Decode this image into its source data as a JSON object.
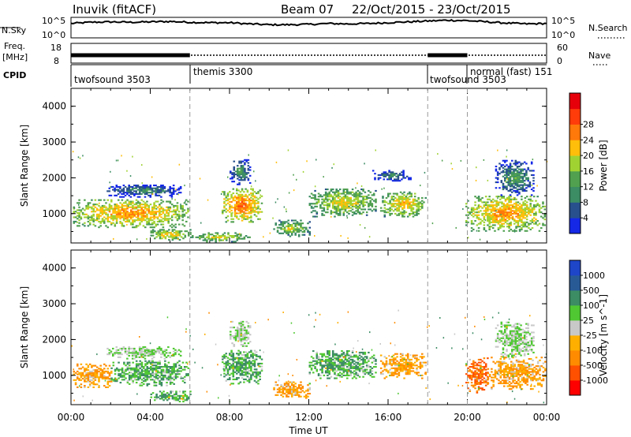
{
  "header": {
    "station": "Inuvik (fitACF)",
    "beam": "Beam 07",
    "date_range": "22/Oct/2015 - 23/Oct/2015"
  },
  "colors": {
    "power_scale": [
      "#1428e6",
      "#28508c",
      "#3c8c64",
      "#50a050",
      "#a0d232",
      "#ffbe0a",
      "#ff780a",
      "#ff3c0a",
      "#e6000a"
    ],
    "velocity_scale": [
      "#ff0000",
      "#ff5000",
      "#ff8c00",
      "#ffaf00",
      "#c8c8c8",
      "#50c832",
      "#3c8c64",
      "#285a96",
      "#1e46c8"
    ]
  },
  "chart_data": [
    {
      "type": "line",
      "panel": "noise",
      "ylabel": "N.Sky",
      "right_label": "N.Search",
      "yticks": [
        "10^5",
        "10^0"
      ],
      "right_yticks": [
        "10^5",
        "10^0"
      ],
      "x": [
        0,
        1,
        2,
        3,
        4,
        5,
        6,
        7,
        8,
        9,
        10,
        11,
        12,
        13,
        14,
        15,
        16,
        17,
        18,
        19,
        20,
        21,
        22,
        23,
        24
      ],
      "values": [
        3.5,
        3.8,
        3.9,
        3.8,
        3.9,
        4.0,
        3.8,
        3.7,
        3.7,
        3.4,
        3.2,
        3.2,
        3.3,
        3.5,
        3.4,
        3.5,
        3.7,
        3.9,
        4.1,
        4.3,
        4.2,
        3.9,
        3.6,
        3.4,
        3.5
      ]
    },
    {
      "type": "line",
      "panel": "frequency-nave",
      "ylabel": "Freq.",
      "ylabel_unit": "[MHz]",
      "right_label": "Nave",
      "yticks": [
        "18",
        "8"
      ],
      "right_yticks": [
        "60",
        "0"
      ],
      "twofsound_intervals": [
        [
          0,
          6
        ],
        [
          18,
          20
        ]
      ],
      "x": [
        0,
        6,
        18,
        20,
        24
      ],
      "values": [
        12,
        12,
        12,
        12,
        12
      ]
    },
    {
      "type": "table",
      "panel": "cpid",
      "ylabel": "CPID",
      "segments": [
        {
          "label": "twofsound 3503",
          "start": 0,
          "end": 6
        },
        {
          "label": "themis 3300",
          "start": 6,
          "end": 18
        },
        {
          "label": "twofsound 3503",
          "start": 18,
          "end": 20
        },
        {
          "label": "normal (fast) 151",
          "start": 20,
          "end": 24
        }
      ]
    },
    {
      "type": "heatmap",
      "panel": "power",
      "ylabel": "Slant Range [km]",
      "colorbar_label": "Power [dB]",
      "colorbar_ticks": [
        4,
        8,
        12,
        16,
        20,
        24,
        28
      ],
      "ylim": [
        180,
        4500
      ],
      "yticks": [
        1000,
        2000,
        3000,
        4000
      ],
      "regions": [
        {
          "t0": 0.1,
          "t1": 5.9,
          "r0": 600,
          "r1": 1400,
          "v": 26
        },
        {
          "t0": 1.8,
          "t1": 5.5,
          "r0": 1450,
          "r1": 1800,
          "v": 12
        },
        {
          "t0": 4.0,
          "t1": 6.0,
          "r0": 250,
          "r1": 550,
          "v": 24
        },
        {
          "t0": 7.6,
          "t1": 9.6,
          "r0": 750,
          "r1": 1700,
          "v": 28
        },
        {
          "t0": 8.0,
          "t1": 9.0,
          "r0": 1800,
          "r1": 2500,
          "v": 14
        },
        {
          "t0": 6.0,
          "t1": 9.0,
          "r0": 200,
          "r1": 450,
          "v": 22
        },
        {
          "t0": 10.2,
          "t1": 12.0,
          "r0": 350,
          "r1": 800,
          "v": 20
        },
        {
          "t0": 12.0,
          "t1": 15.4,
          "r0": 900,
          "r1": 1700,
          "v": 22
        },
        {
          "t0": 15.6,
          "t1": 17.9,
          "r0": 900,
          "r1": 1600,
          "v": 24
        },
        {
          "t0": 15.2,
          "t1": 17.2,
          "r0": 1900,
          "r1": 2200,
          "v": 12
        },
        {
          "t0": 19.9,
          "t1": 23.9,
          "r0": 500,
          "r1": 1500,
          "v": 26
        },
        {
          "t0": 21.4,
          "t1": 23.3,
          "r0": 1500,
          "r1": 2500,
          "v": 14
        }
      ]
    },
    {
      "type": "heatmap",
      "panel": "velocity",
      "ylabel": "Slant Range [km]",
      "xlabel": "Time UT",
      "colorbar_label": "Velocity [m s^-1]",
      "colorbar_ticks": [
        1000,
        500,
        100,
        25,
        -25,
        -100,
        -500,
        -1000
      ],
      "ylim": [
        180,
        4500
      ],
      "yticks": [
        1000,
        2000,
        3000,
        4000
      ],
      "xlim": [
        0,
        24
      ],
      "xticks": [
        "00:00",
        "04:00",
        "08:00",
        "12:00",
        "16:00",
        "20:00",
        "00:00"
      ],
      "regions": [
        {
          "t0": 0.1,
          "t1": 2.0,
          "r0": 650,
          "r1": 1300,
          "v": -100
        },
        {
          "t0": 2.0,
          "t1": 5.9,
          "r0": 700,
          "r1": 1400,
          "v": 100
        },
        {
          "t0": 1.8,
          "t1": 5.5,
          "r0": 1450,
          "r1": 1800,
          "v": 25
        },
        {
          "t0": 4.0,
          "t1": 6.0,
          "r0": 250,
          "r1": 550,
          "v": 100
        },
        {
          "t0": 7.6,
          "t1": 9.6,
          "r0": 750,
          "r1": 1700,
          "v": 100
        },
        {
          "t0": 8.0,
          "t1": 9.0,
          "r0": 1800,
          "r1": 2500,
          "v": 25
        },
        {
          "t0": 10.2,
          "t1": 12.0,
          "r0": 350,
          "r1": 800,
          "v": -100
        },
        {
          "t0": 12.0,
          "t1": 15.4,
          "r0": 900,
          "r1": 1700,
          "v": 100
        },
        {
          "t0": 15.6,
          "t1": 17.9,
          "r0": 900,
          "r1": 1600,
          "v": -100
        },
        {
          "t0": 19.9,
          "t1": 21.0,
          "r0": 500,
          "r1": 1500,
          "v": -500
        },
        {
          "t0": 21.0,
          "t1": 23.9,
          "r0": 600,
          "r1": 1500,
          "v": -100
        },
        {
          "t0": 21.4,
          "t1": 23.3,
          "r0": 1500,
          "r1": 2500,
          "v": 25
        }
      ]
    }
  ]
}
